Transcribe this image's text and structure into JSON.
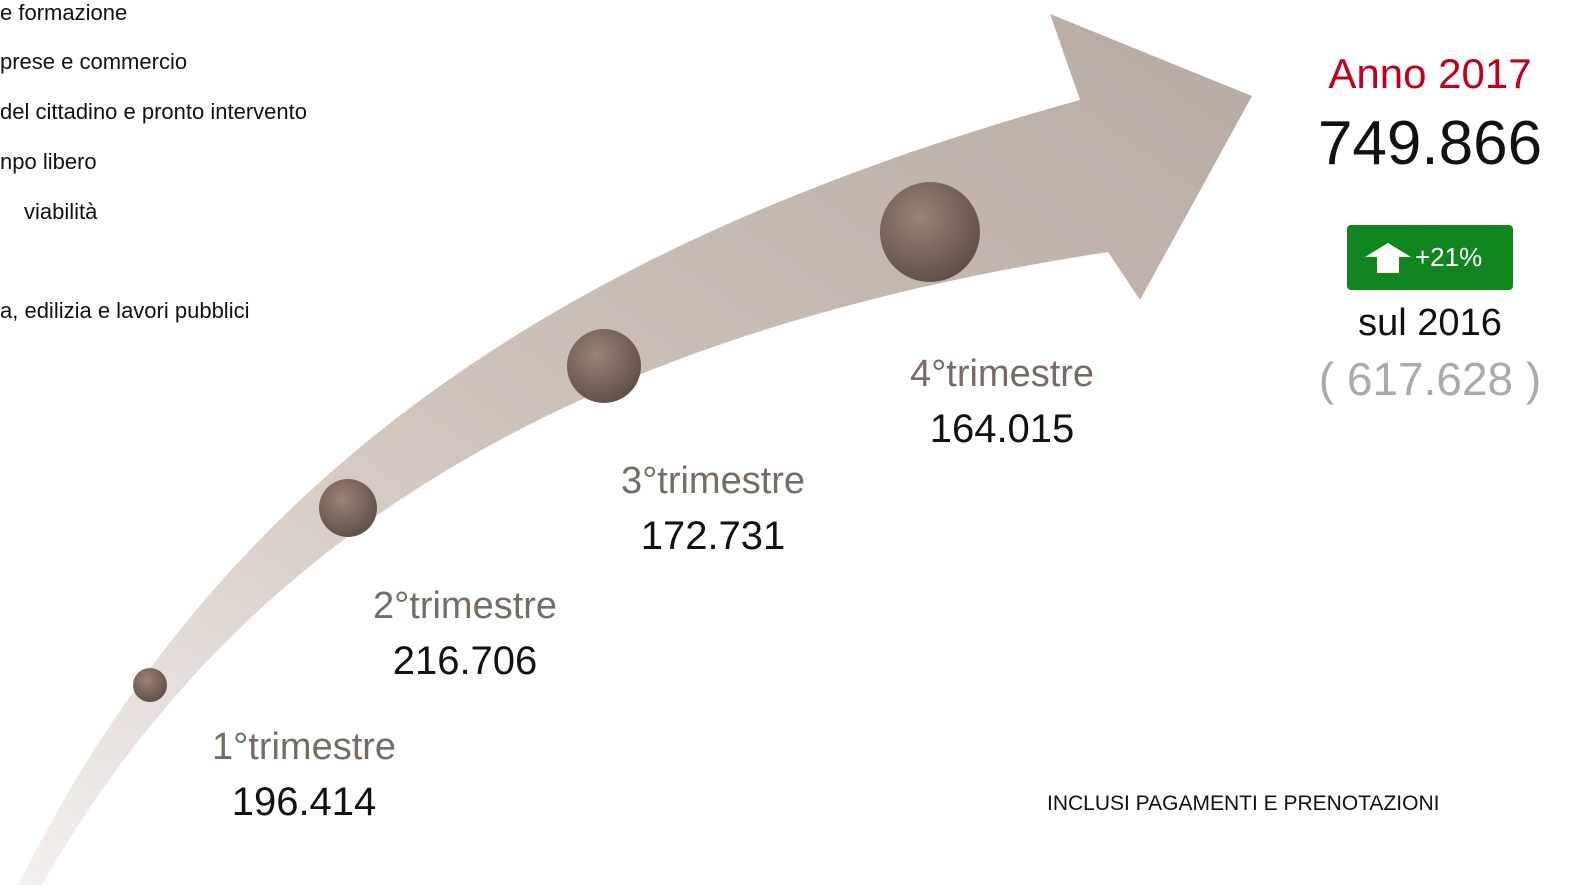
{
  "menu": [
    "e formazione",
    "prese e commercio",
    "del cittadino e pronto intervento",
    "npo libero",
    "viabilità",
    "a, edilizia e lavori pubblici"
  ],
  "quarters": [
    {
      "label": "1°trimestre",
      "value": "196.414"
    },
    {
      "label": "2°trimestre",
      "value": "216.706"
    },
    {
      "label": "3°trimestre",
      "value": "172.731"
    },
    {
      "label": "4°trimestre",
      "value": "164.015"
    }
  ],
  "summary": {
    "year": "Anno 2017",
    "total": "749.866",
    "change": "+21%",
    "compare": "sul 2016",
    "previous": "( 617.628 )"
  },
  "note": "INCLUSI PAGAMENTI E PRENOTAZIONI"
}
